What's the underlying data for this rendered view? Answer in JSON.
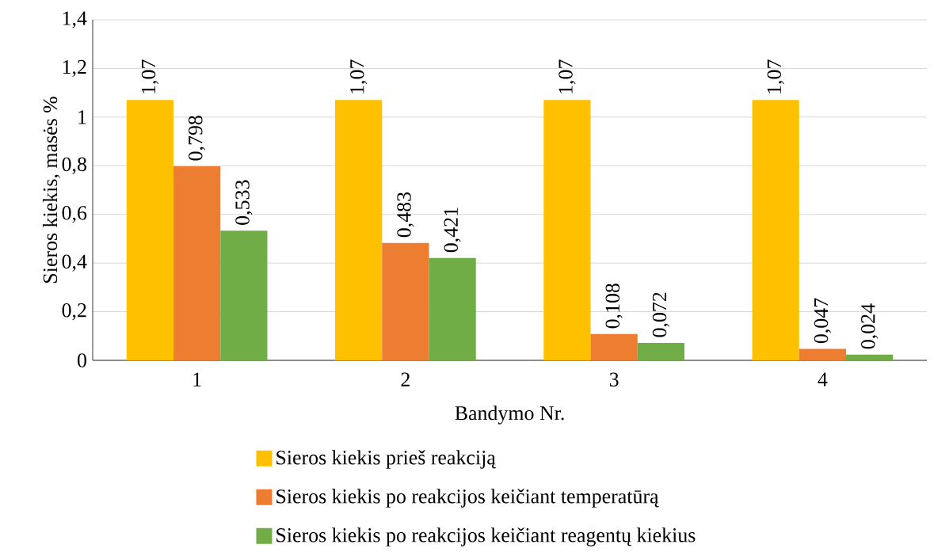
{
  "chart_data": {
    "type": "bar",
    "xlabel": "Bandymo Nr.",
    "ylabel": "Sieros kiekis, masės %",
    "categories": [
      "1",
      "2",
      "3",
      "4"
    ],
    "series": [
      {
        "name": "Sieros kiekis prieš reakciją",
        "color": "#ffc000",
        "values": [
          1.07,
          1.07,
          1.07,
          1.07
        ],
        "value_labels": [
          "1,07",
          "1,07",
          "1,07",
          "1,07"
        ]
      },
      {
        "name": "Sieros kiekis po reakcijos keičiant temperatūrą",
        "color": "#ed7d31",
        "values": [
          0.798,
          0.483,
          0.108,
          0.047
        ],
        "value_labels": [
          "0,798",
          "0,483",
          "0,108",
          "0,047"
        ]
      },
      {
        "name": "Sieros kiekis po reakcijos keičiant reagentų kiekius",
        "color": "#70ad47",
        "values": [
          0.533,
          0.421,
          0.072,
          0.024
        ],
        "value_labels": [
          "0,533",
          "0,421",
          "0,072",
          "0,024"
        ]
      }
    ],
    "ylim": [
      0,
      1.4
    ],
    "yticks": [
      {
        "value": 0,
        "label": "0"
      },
      {
        "value": 0.2,
        "label": "0,2"
      },
      {
        "value": 0.4,
        "label": "0,4"
      },
      {
        "value": 0.6,
        "label": "0,6"
      },
      {
        "value": 0.8,
        "label": "0,8"
      },
      {
        "value": 1,
        "label": "1"
      },
      {
        "value": 1.2,
        "label": "1,2"
      },
      {
        "value": 1.4,
        "label": "1,4"
      }
    ],
    "grid": "y",
    "legend": "bottom"
  }
}
